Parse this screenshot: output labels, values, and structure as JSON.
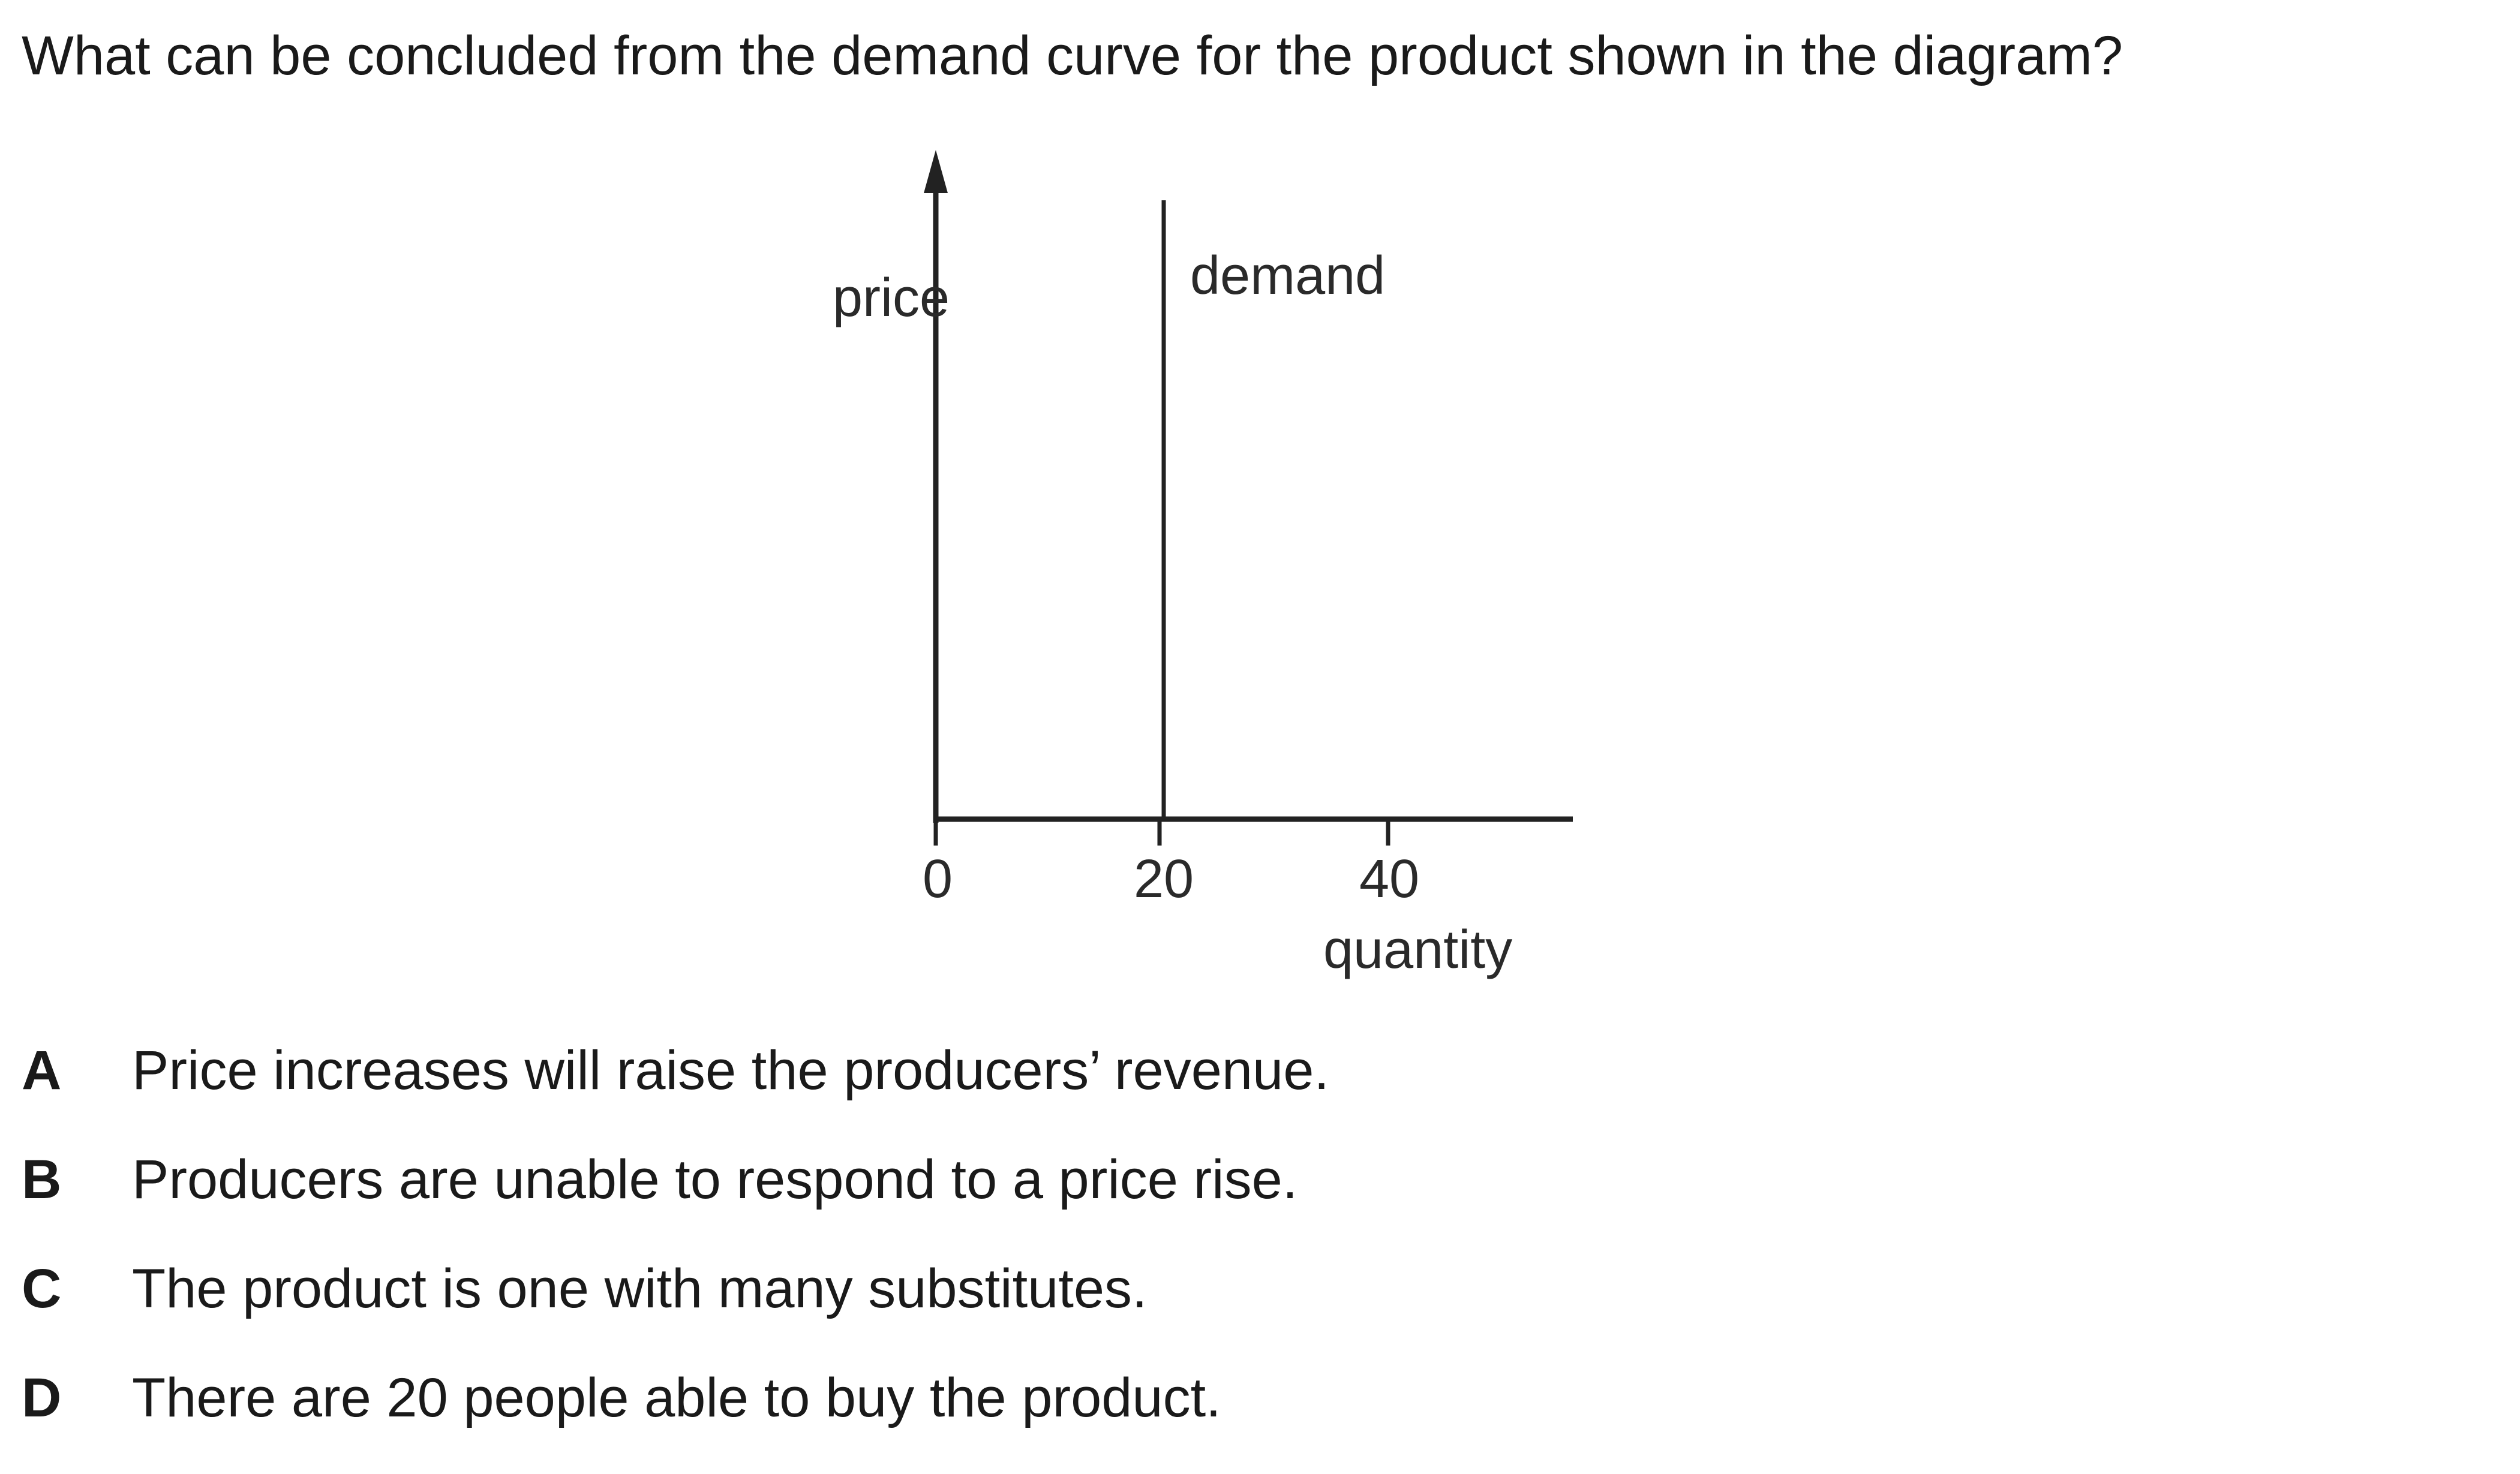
{
  "question": "What can be concluded from the demand curve for the product shown in the diagram?",
  "diagram": {
    "y_axis_label": "price",
    "x_axis_label": "quantity",
    "curve_label": "demand",
    "x_ticks": [
      "0",
      "20",
      "40"
    ],
    "demand_quantity": 20
  },
  "options": [
    {
      "letter": "A",
      "text": "Price increases will raise the producers’ revenue."
    },
    {
      "letter": "B",
      "text": "Producers are unable to respond to a price rise."
    },
    {
      "letter": "C",
      "text": "The product is one with many substitutes."
    },
    {
      "letter": "D",
      "text": "There are 20 people able to buy the product."
    }
  ]
}
